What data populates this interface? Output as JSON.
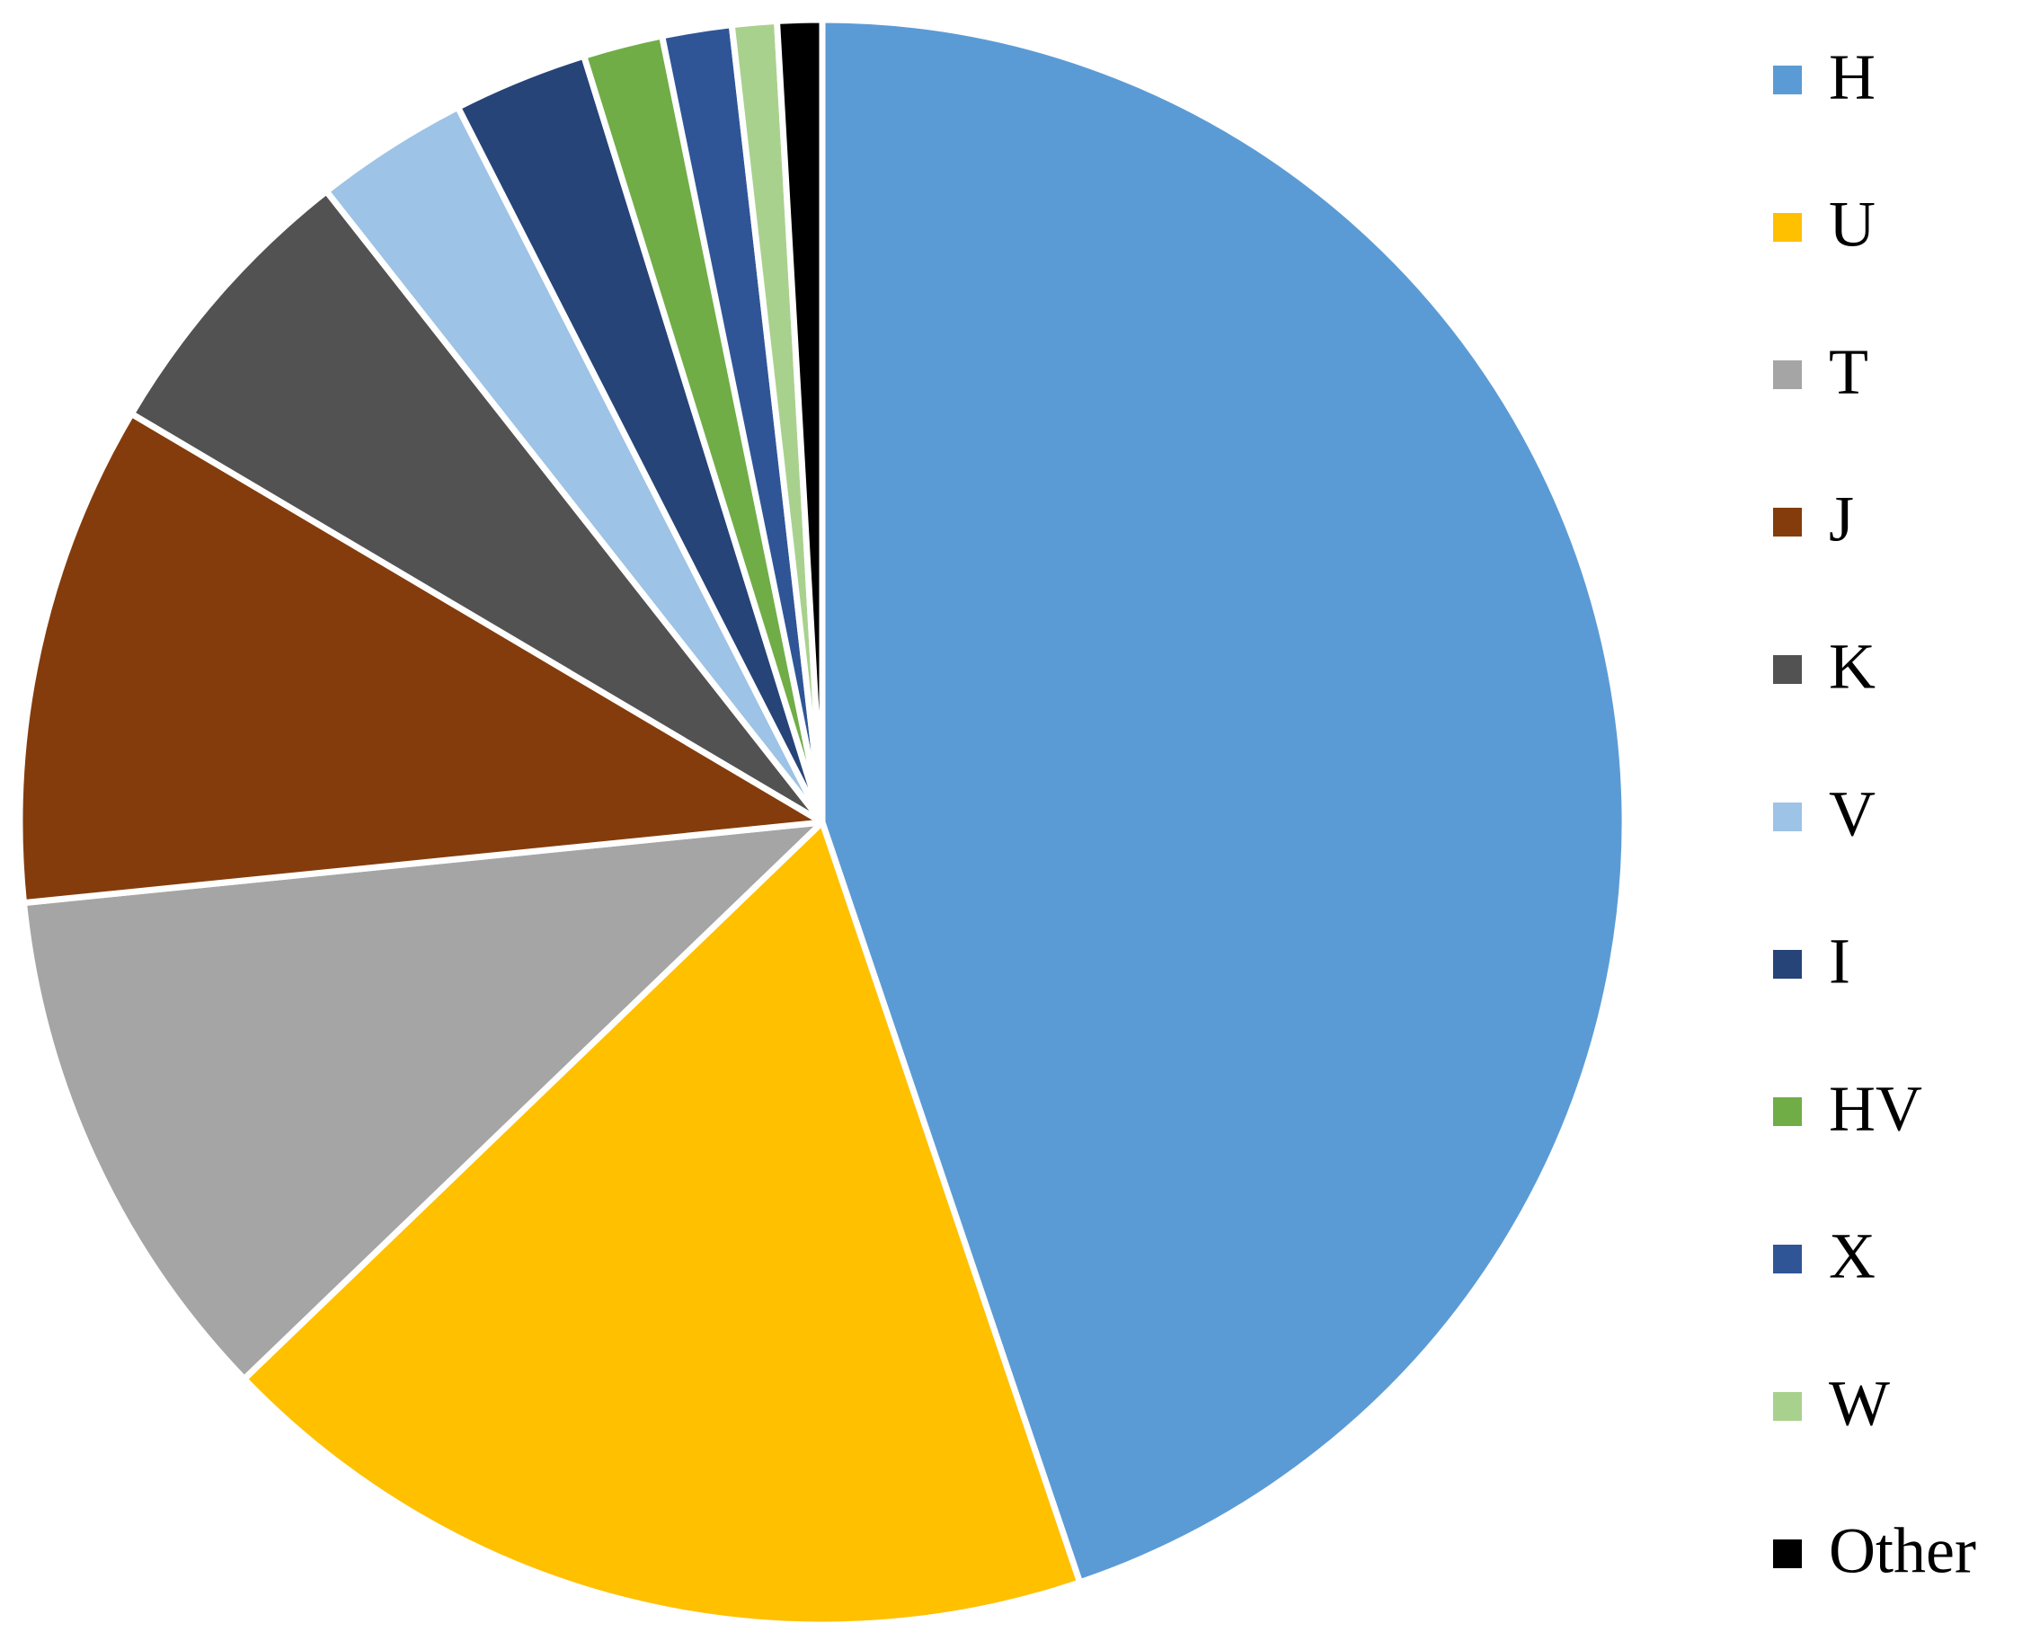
{
  "chart_data": {
    "type": "pie",
    "categories": [
      "H",
      "U",
      "T",
      "J",
      "K",
      "V",
      "I",
      "HV",
      "X",
      "W",
      "Other"
    ],
    "values": [
      44.8,
      18,
      10.6,
      10.1,
      5.9,
      3.1,
      2.7,
      1.6,
      1.4,
      0.9,
      0.9
    ],
    "colors": [
      "#5b9bd5",
      "#ffc000",
      "#a5a5a5",
      "#843c0c",
      "#525252",
      "#9dc3e6",
      "#264478",
      "#70ad47",
      "#2f5597",
      "#a9d18e",
      "#000000"
    ],
    "legend": "right"
  }
}
